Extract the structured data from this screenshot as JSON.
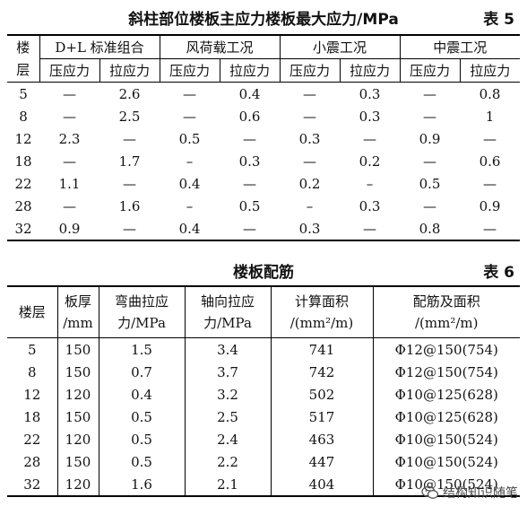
{
  "table5": {
    "title": "斜柱部位楼板主应力楼板最大应力/MPa",
    "tag": "表 5",
    "floor_header": "楼层",
    "groups": [
      "D+L 标准组合",
      "风荷载工况",
      "小震工况",
      "中震工况"
    ],
    "subheaders": [
      "压应力",
      "拉应力",
      "压应力",
      "拉应力",
      "压应力",
      "拉应力",
      "压应力",
      "拉应力"
    ],
    "rows": [
      [
        "5",
        "—",
        "2.6",
        "—",
        "0.4",
        "—",
        "0.3",
        "—",
        "0.8"
      ],
      [
        "8",
        "—",
        "2.5",
        "—",
        "0.6",
        "—",
        "0.3",
        "—",
        "1"
      ],
      [
        "12",
        "2.3",
        "—",
        "0.5",
        "—",
        "0.3",
        "—",
        "0.9",
        "—"
      ],
      [
        "18",
        "—",
        "1.7",
        "–",
        "0.3",
        "—",
        "0.2",
        "—",
        "0.6"
      ],
      [
        "22",
        "1.1",
        "—",
        "0.4",
        "—",
        "0.2",
        "–",
        "0.5",
        "—"
      ],
      [
        "28",
        "—",
        "1.6",
        "–",
        "0.5",
        "–",
        "0.3",
        "—",
        "0.9"
      ],
      [
        "32",
        "0.9",
        "—",
        "0.4",
        "—",
        "0.3",
        "—",
        "0.8",
        "—"
      ]
    ]
  },
  "table6": {
    "title": "楼板配筋",
    "tag": "表 6",
    "headers": [
      [
        "楼层"
      ],
      [
        "板厚",
        "/mm"
      ],
      [
        "弯曲拉应",
        "力/MPa"
      ],
      [
        "轴向拉应",
        "力/MPa"
      ],
      [
        "计算面积",
        "/(mm²/m)"
      ],
      [
        "配筋及面积",
        "/(mm²/m)"
      ]
    ],
    "rows": [
      [
        "5",
        "150",
        "1.5",
        "3.4",
        "741",
        "Φ12@150(754)"
      ],
      [
        "8",
        "150",
        "0.7",
        "3.7",
        "742",
        "Φ12@150(754)"
      ],
      [
        "12",
        "120",
        "0.4",
        "3.2",
        "502",
        "Φ10@125(628)"
      ],
      [
        "18",
        "150",
        "0.5",
        "2.5",
        "517",
        "Φ10@125(628)"
      ],
      [
        "22",
        "120",
        "0.5",
        "2.4",
        "463",
        "Φ10@150(524)"
      ],
      [
        "28",
        "150",
        "0.5",
        "2.2",
        "447",
        "Φ10@150(524)"
      ],
      [
        "32",
        "120",
        "1.6",
        "2.1",
        "404",
        "Φ10@150(524)"
      ]
    ]
  },
  "watermark": {
    "text": "结构知识随笔",
    "icon": "wechat-icon"
  }
}
